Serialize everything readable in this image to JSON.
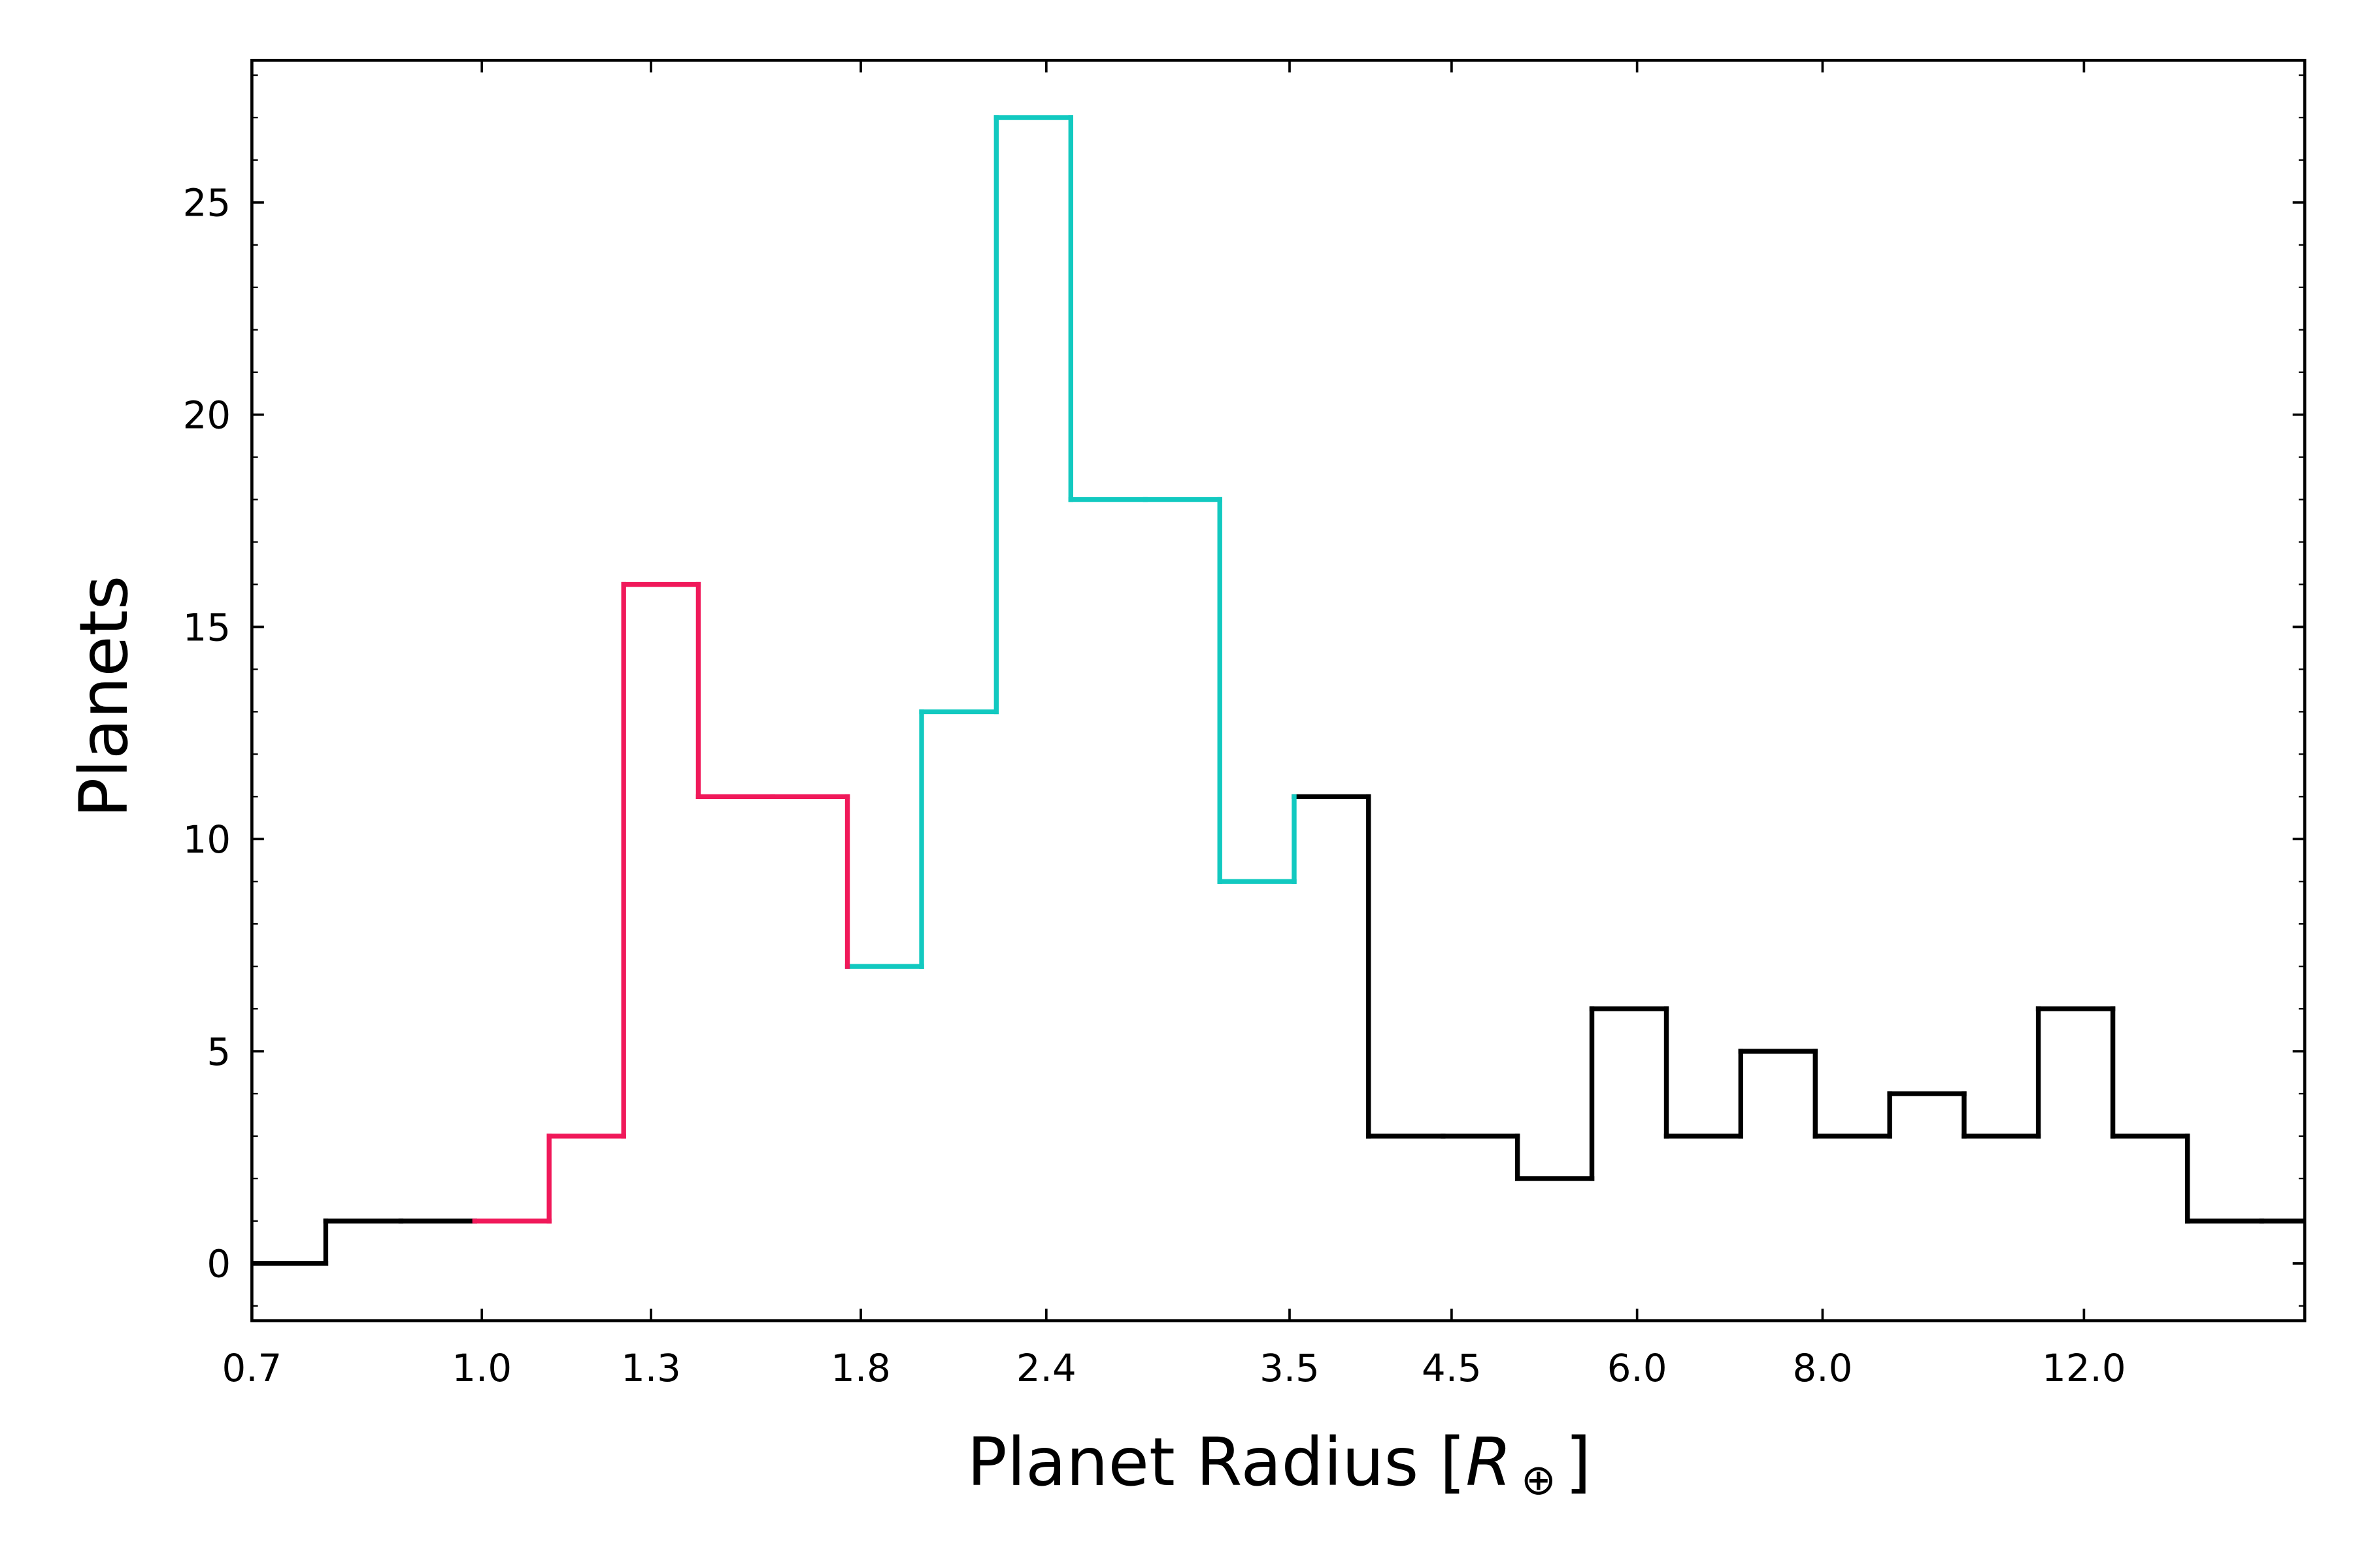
{
  "chart_data": {
    "type": "histogram",
    "ylabel": "Planets",
    "xlabel": [
      "Planet Radius [",
      "R",
      "⊕",
      "]"
    ],
    "xscale": "log",
    "bins": [
      0.7,
      0.785,
      0.882,
      0.989,
      1.11,
      1.246,
      1.399,
      1.57,
      1.763,
      1.978,
      2.221,
      2.493,
      2.798,
      3.141,
      3.525,
      3.956,
      4.441,
      4.984,
      5.594,
      6.279,
      7.047,
      7.91,
      8.878,
      9.964,
      11.18,
      12.55,
      14.09,
      15.81,
      17.75
    ],
    "values": [
      0,
      1,
      1,
      1,
      3,
      16,
      11,
      11,
      7,
      13,
      27,
      18,
      18,
      9,
      11,
      3,
      3,
      2,
      6,
      3,
      5,
      3,
      4,
      3,
      6,
      3,
      1,
      1
    ],
    "colors": [
      "#000000",
      "#000000",
      "#000000",
      "#f0195a",
      "#f0195a",
      "#f0195a",
      "#f0195a",
      "#f0195a",
      "#12c9c0",
      "#12c9c0",
      "#12c9c0",
      "#12c9c0",
      "#12c9c0",
      "#12c9c0",
      "#000000",
      "#000000",
      "#000000",
      "#000000",
      "#000000",
      "#000000",
      "#000000",
      "#000000",
      "#000000",
      "#000000",
      "#000000",
      "#000000",
      "#000000",
      "#000000"
    ],
    "xlim": [
      0.7,
      16.9
    ],
    "xticks": [
      0.7,
      {
        "value": 1.0,
        "label": "1.0"
      },
      1.3,
      1.8,
      2.4,
      3.5,
      4.5,
      {
        "value": 6.0,
        "label": "6.0"
      },
      {
        "value": 8.0,
        "label": "8.0"
      },
      {
        "value": 12.0,
        "label": "12.0"
      }
    ],
    "ylim": [
      -1.35,
      28.35
    ],
    "yticks": [
      0,
      5,
      10,
      15,
      20,
      25
    ],
    "grid": false
  }
}
